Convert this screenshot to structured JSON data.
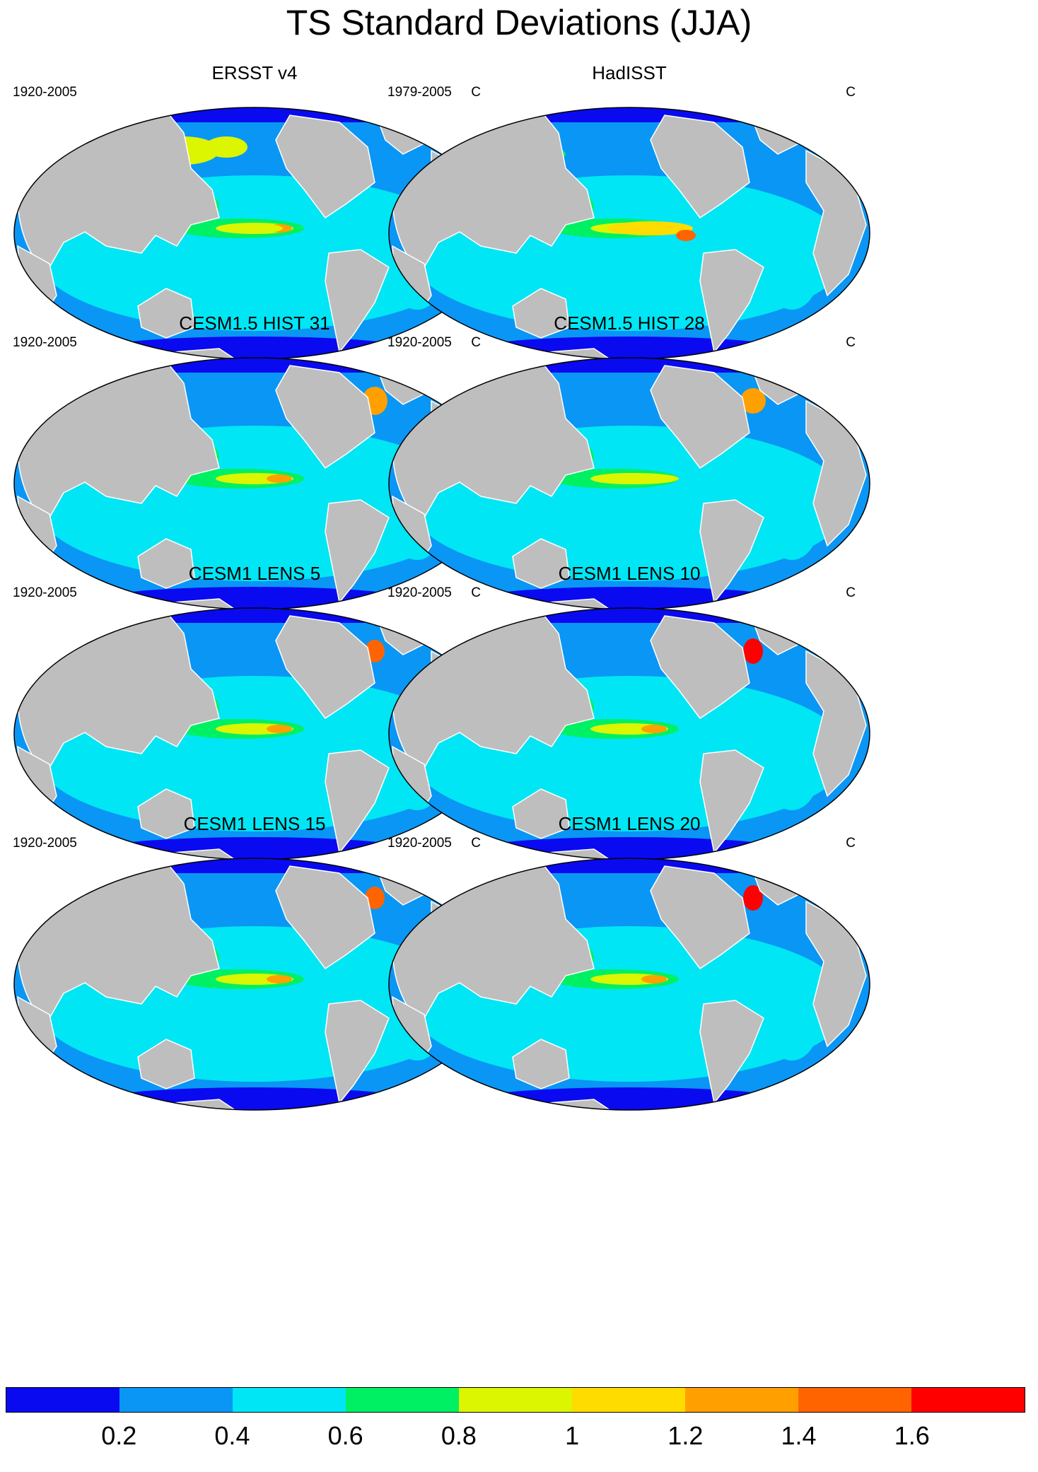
{
  "title": "TS Standard Deviations (JJA)",
  "panels": [
    {
      "title": "ERSST v4",
      "years": "1920-2005",
      "units": "C"
    },
    {
      "title": "HadISST",
      "years": "1979-2005",
      "units": "C"
    },
    {
      "title": "CESM1.5 HIST 31",
      "years": "1920-2005",
      "units": "C"
    },
    {
      "title": "CESM1.5 HIST 28",
      "years": "1920-2005",
      "units": "C"
    },
    {
      "title": "CESM1 LENS 5",
      "years": "1920-2005",
      "units": "C"
    },
    {
      "title": "CESM1 LENS 10",
      "years": "1920-2005",
      "units": "C"
    },
    {
      "title": "CESM1 LENS 15",
      "years": "1920-2005",
      "units": "C"
    },
    {
      "title": "CESM1 LENS 20",
      "years": "1920-2005",
      "units": "C"
    }
  ],
  "colorbar": {
    "colors": [
      "#0a0af0",
      "#0a96f5",
      "#00e6f5",
      "#00f064",
      "#dcf500",
      "#ffdc00",
      "#ffa000",
      "#ff6400",
      "#ff0000"
    ],
    "labels": [
      "0.2",
      "0.4",
      "0.6",
      "0.8",
      "1",
      "1.2",
      "1.4",
      "1.6"
    ]
  },
  "colors": {
    "land": "#bebebe",
    "ocean_base": "#0a96f5"
  }
}
